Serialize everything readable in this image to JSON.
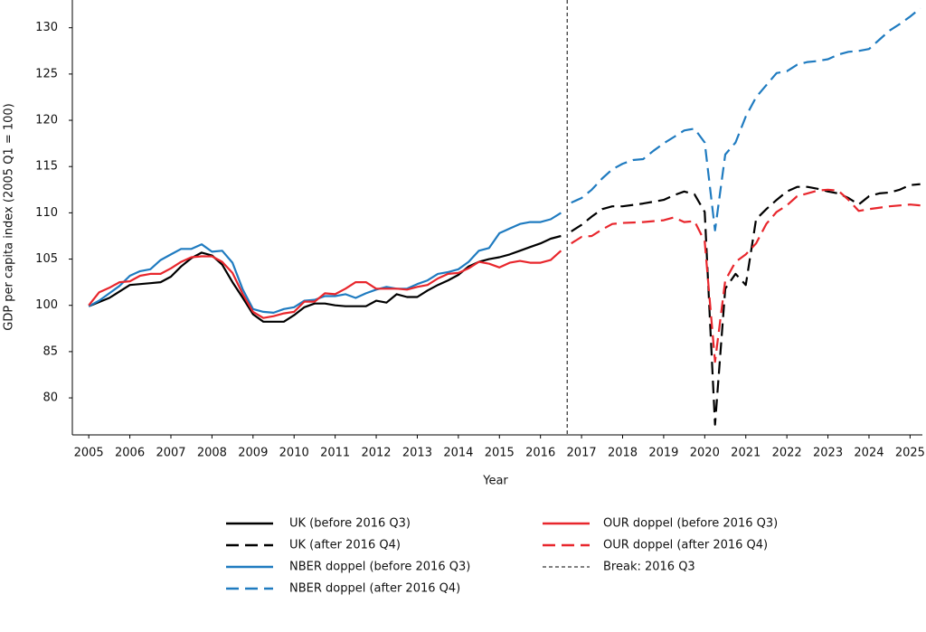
{
  "chart_data": {
    "type": "line",
    "x_label": "Year",
    "y_label": "GDP per capita index (2005 Q1 = 100)",
    "xlim": [
      2004.6,
      2025.3
    ],
    "xticks": [
      2005,
      2006,
      2007,
      2008,
      2009,
      2010,
      2011,
      2012,
      2013,
      2014,
      2015,
      2016,
      2017,
      2018,
      2019,
      2020,
      2021,
      2022,
      2023,
      2024,
      2025
    ],
    "ylim": [
      76,
      133
    ],
    "yticks": [
      80,
      85,
      100,
      105,
      110,
      115,
      120,
      125,
      130
    ],
    "grid": false,
    "legend": "bottom",
    "break_line": {
      "name": "Break: 2016 Q3",
      "x": 2016.65,
      "color": "#000000"
    },
    "series": [
      {
        "name": "UK (before 2016 Q3)",
        "color": "#000000",
        "dashed": false,
        "x": [
          2005,
          2005.5,
          2006,
          2006.5,
          2006.75,
          2007,
          2007.25,
          2007.5,
          2007.75,
          2008,
          2008.25,
          2008.5,
          2008.75,
          2009,
          2009.25,
          2009.5,
          2009.75,
          2010,
          2010.25,
          2010.5,
          2010.75,
          2011,
          2011.25,
          2011.5,
          2011.75,
          2012,
          2012.25,
          2012.5,
          2012.75,
          2013,
          2013.25,
          2013.5,
          2013.75,
          2014,
          2014.25,
          2014.5,
          2014.75,
          2015,
          2015.25,
          2015.5,
          2015.75,
          2016,
          2016.25,
          2016.5
        ],
        "values": [
          99.7,
          100.8,
          102.2,
          102.4,
          102.5,
          103.1,
          104.2,
          105.1,
          105.7,
          105.4,
          104.4,
          102.5,
          100.8,
          97.1,
          94.7,
          94.7,
          94.7,
          96.8,
          99.4,
          100.2,
          100.2,
          100,
          99.7,
          99.7,
          99.7,
          100.5,
          100.3,
          101.2,
          100.9,
          100.9,
          101.6,
          102.2,
          102.7,
          103.3,
          104.2,
          104.7,
          105,
          105.2,
          105.5,
          105.9,
          106.3,
          106.7,
          107.2,
          107.5
        ]
      },
      {
        "name": "UK (after 2016 Q4)",
        "color": "#000000",
        "dashed": true,
        "x": [
          2016.75,
          2017,
          2017.25,
          2017.5,
          2017.75,
          2018,
          2018.5,
          2019,
          2019.25,
          2019.5,
          2019.75,
          2020,
          2020.25,
          2020.5,
          2020.75,
          2021,
          2021.25,
          2021.5,
          2021.75,
          2022,
          2022.25,
          2022.5,
          2022.75,
          2023,
          2023.25,
          2023.5,
          2023.75,
          2024,
          2024.25,
          2024.5,
          2024.75,
          2025,
          2025.25
        ],
        "values": [
          108,
          108.7,
          109.6,
          110.4,
          110.7,
          110.7,
          111,
          111.4,
          111.9,
          112.3,
          112,
          110.1,
          77.1,
          101.8,
          103.4,
          102.2,
          109.3,
          110.4,
          111.4,
          112.3,
          112.8,
          112.8,
          112.6,
          112.3,
          112.1,
          111.6,
          110.9,
          111.8,
          112.1,
          112.2,
          112.5,
          113,
          113.1
        ]
      },
      {
        "name": "NBER doppel (before 2016 Q3)",
        "color": "#1f7bc0",
        "dashed": false,
        "x": [
          2005,
          2005.25,
          2005.5,
          2005.75,
          2006,
          2006.25,
          2006.5,
          2006.75,
          2007,
          2007.25,
          2007.5,
          2007.75,
          2008,
          2008.25,
          2008.5,
          2008.75,
          2009,
          2009.25,
          2009.5,
          2009.75,
          2010,
          2010.25,
          2010.5,
          2010.75,
          2011,
          2011.25,
          2011.5,
          2011.75,
          2012,
          2012.25,
          2012.5,
          2012.75,
          2013,
          2013.25,
          2013.5,
          2013.75,
          2014,
          2014.25,
          2014.5,
          2014.75,
          2015,
          2015.25,
          2015.5,
          2015.75,
          2016,
          2016.25,
          2016.5
        ],
        "values": [
          99.7,
          100.5,
          101.3,
          102.1,
          103.2,
          103.7,
          103.9,
          104.9,
          105.5,
          106.1,
          106.1,
          106.6,
          105.8,
          105.9,
          104.6,
          101.7,
          98.8,
          97.9,
          97.6,
          98.8,
          99.4,
          100.5,
          100.6,
          101,
          101,
          101.2,
          100.8,
          101.3,
          101.7,
          102,
          101.8,
          101.8,
          102.3,
          102.7,
          103.4,
          103.6,
          103.9,
          104.7,
          105.9,
          106.2,
          107.8,
          108.3,
          108.8,
          109,
          109,
          109.3,
          110
        ]
      },
      {
        "name": "NBER doppel (after 2016 Q4)",
        "color": "#1f7bc0",
        "dashed": true,
        "x": [
          2016.75,
          2017,
          2017.25,
          2017.5,
          2017.75,
          2018,
          2018.25,
          2018.5,
          2018.75,
          2019,
          2019.25,
          2019.5,
          2019.75,
          2020,
          2020.25,
          2020.5,
          2020.75,
          2021,
          2021.25,
          2021.5,
          2021.75,
          2022,
          2022.25,
          2022.5,
          2022.75,
          2023,
          2023.25,
          2023.5,
          2023.75,
          2024,
          2024.25,
          2024.5,
          2024.75,
          2025,
          2025.25
        ],
        "values": [
          111.1,
          111.6,
          112.5,
          113.7,
          114.7,
          115.3,
          115.7,
          115.8,
          116.7,
          117.5,
          118.2,
          118.9,
          119.1,
          117.6,
          108.1,
          116.3,
          117.6,
          120.4,
          122.5,
          123.8,
          125.1,
          125.3,
          126,
          126.3,
          126.4,
          126.6,
          127.1,
          127.4,
          127.5,
          127.7,
          128.7,
          129.7,
          130.4,
          131.2,
          132.1
        ]
      },
      {
        "name": "OUR doppel (before 2016 Q3)",
        "color": "#e8262c",
        "dashed": false,
        "x": [
          2005,
          2005.25,
          2005.5,
          2005.75,
          2006,
          2006.25,
          2006.5,
          2006.75,
          2007,
          2007.25,
          2007.5,
          2007.75,
          2008,
          2008.25,
          2008.5,
          2008.75,
          2009,
          2009.25,
          2009.5,
          2009.75,
          2010,
          2010.25,
          2010.5,
          2010.75,
          2011,
          2011.25,
          2011.5,
          2011.75,
          2012,
          2012.25,
          2012.5,
          2012.75,
          2013,
          2013.25,
          2013.5,
          2013.75,
          2014,
          2014.25,
          2014.5,
          2014.75,
          2015,
          2015.25,
          2015.5,
          2015.75,
          2016,
          2016.25,
          2016.5
        ],
        "values": [
          100,
          101.4,
          101.9,
          102.5,
          102.6,
          103.2,
          103.4,
          103.4,
          104,
          104.7,
          105.2,
          105.3,
          105.3,
          104.7,
          103.5,
          101.2,
          97.9,
          95.9,
          96.5,
          97.4,
          97.9,
          100.4,
          100.4,
          101.3,
          101.2,
          101.8,
          102.5,
          102.5,
          101.8,
          101.8,
          101.8,
          101.7,
          102,
          102.2,
          102.9,
          103.4,
          103.5,
          104,
          104.7,
          104.5,
          104.1,
          104.6,
          104.8,
          104.6,
          104.6,
          104.9,
          105.9
        ]
      },
      {
        "name": "OUR doppel (after 2016 Q4)",
        "color": "#e8262c",
        "dashed": true,
        "x": [
          2016.75,
          2017,
          2017.25,
          2017.5,
          2017.75,
          2018,
          2018.5,
          2019,
          2019.25,
          2019.5,
          2019.75,
          2020,
          2020.25,
          2020.5,
          2020.75,
          2021,
          2021.25,
          2021.5,
          2021.75,
          2022,
          2022.25,
          2022.5,
          2022.75,
          2023,
          2023.25,
          2023.5,
          2023.75,
          2024,
          2024.5,
          2025,
          2025.25
        ],
        "values": [
          106.7,
          107.4,
          107.5,
          108.2,
          108.8,
          108.9,
          109,
          109.2,
          109.5,
          109,
          109.1,
          106.9,
          83.9,
          102.7,
          104.7,
          105.5,
          106.7,
          108.8,
          110.1,
          110.8,
          111.8,
          112.1,
          112.4,
          112.5,
          112.4,
          111.4,
          110.2,
          110.4,
          110.7,
          110.9,
          110.8
        ]
      }
    ]
  }
}
